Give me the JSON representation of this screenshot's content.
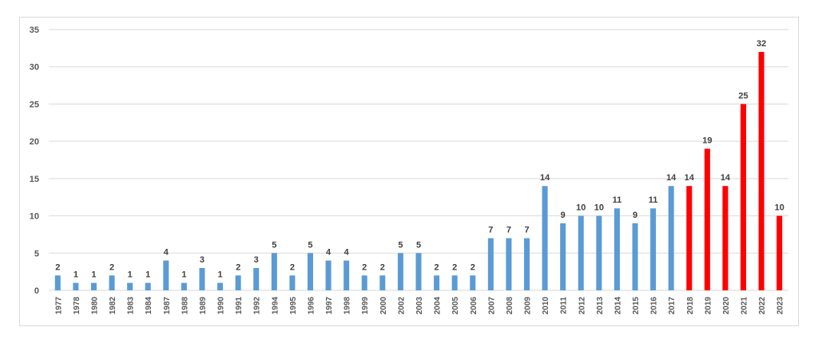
{
  "chart_data": {
    "type": "bar",
    "categories": [
      "1977",
      "1978",
      "1980",
      "1982",
      "1983",
      "1984",
      "1987",
      "1988",
      "1989",
      "1990",
      "1991",
      "1992",
      "1994",
      "1995",
      "1996",
      "1997",
      "1998",
      "1999",
      "2000",
      "2002",
      "2003",
      "2004",
      "2005",
      "2006",
      "2007",
      "2008",
      "2009",
      "2010",
      "2011",
      "2012",
      "2013",
      "2014",
      "2015",
      "2016",
      "2017",
      "2018",
      "2019",
      "2020",
      "2021",
      "2022",
      "2023"
    ],
    "series": [
      {
        "values": [
          2,
          1,
          1,
          2,
          1,
          1,
          4,
          1,
          3,
          1,
          2,
          3,
          5,
          2,
          5,
          4,
          4,
          2,
          2,
          5,
          5,
          2,
          2,
          2,
          7,
          7,
          7,
          14,
          9,
          10,
          10,
          11,
          9,
          11,
          14,
          14,
          19,
          14,
          25,
          32,
          10
        ]
      }
    ],
    "bar_colors": {
      "default": "#5b9bd5",
      "highlight": "#ff0000",
      "highlight_categories": [
        "2018",
        "2019",
        "2020",
        "2021",
        "2022",
        "2023"
      ]
    },
    "ylim": [
      0,
      35
    ],
    "yticks": [
      0,
      5,
      10,
      15,
      20,
      25,
      30,
      35
    ],
    "grid": true,
    "legend": "none",
    "data_labels": true
  }
}
